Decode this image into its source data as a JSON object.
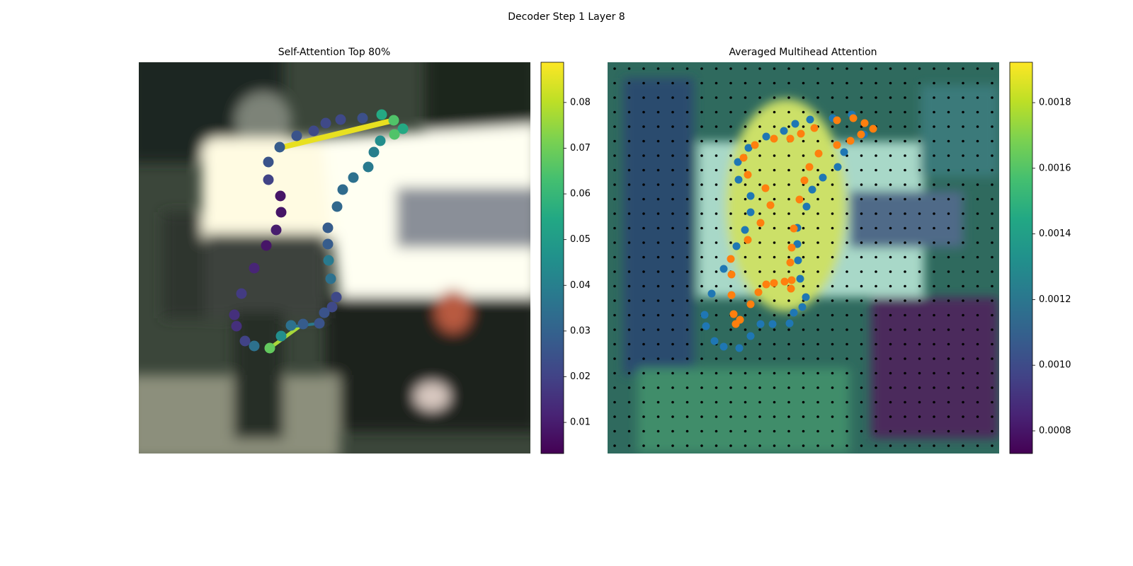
{
  "title": "Decoder Step 1 Layer 8",
  "chart_data": [
    {
      "type": "scatter",
      "title": "Self-Attention Top 80%",
      "colormap": "viridis",
      "xlim": [
        0,
        553
      ],
      "ylim": [
        553,
        0
      ],
      "x": [
        199,
        223,
        247,
        264,
        285,
        316,
        343,
        360,
        373,
        361,
        341,
        332,
        324,
        303,
        288,
        280,
        267,
        267,
        268,
        271,
        279,
        273,
        262,
        255,
        232,
        215,
        201,
        185,
        163,
        150,
        138,
        135,
        145,
        163,
        180,
        194,
        201,
        200,
        183,
        183
      ],
      "y": [
        120,
        104,
        97,
        86,
        81,
        79,
        74,
        82,
        94,
        102,
        111,
        127,
        148,
        163,
        180,
        204,
        234,
        257,
        280,
        306,
        332,
        346,
        354,
        369,
        370,
        372,
        387,
        404,
        401,
        394,
        373,
        357,
        327,
        291,
        259,
        237,
        212,
        189,
        166,
        141
      ],
      "values": [
        0.028,
        0.025,
        0.022,
        0.022,
        0.022,
        0.024,
        0.055,
        0.065,
        0.055,
        0.065,
        0.045,
        0.04,
        0.038,
        0.035,
        0.033,
        0.032,
        0.028,
        0.028,
        0.038,
        0.035,
        0.022,
        0.022,
        0.025,
        0.025,
        0.028,
        0.035,
        0.045,
        0.068,
        0.035,
        0.02,
        0.015,
        0.015,
        0.018,
        0.012,
        0.008,
        0.01,
        0.008,
        0.008,
        0.02,
        0.025
      ],
      "clim": [
        0.0032,
        0.0888
      ],
      "cticks": [
        0.01,
        0.02,
        0.03,
        0.04,
        0.05,
        0.06,
        0.07,
        0.08
      ]
    },
    {
      "type": "scatter",
      "title": "Averaged Multihead Attention",
      "colormap": "viridis",
      "xlim": [
        0,
        553
      ],
      "ylim": [
        553,
        0
      ],
      "series": [
        {
          "color": "#1f77b4",
          "x": [
            345,
            362,
            334,
            325,
            304,
            289,
            281,
            268,
            268,
            269,
            272,
            280,
            275,
            263,
            257,
            233,
            216,
            202,
            186,
            164,
            151,
            139,
            137,
            147,
            164,
            182,
            194,
            202,
            202,
            185,
            184,
            199,
            224,
            249,
            265,
            286,
            318
          ],
          "y": [
            74,
            102,
            127,
            148,
            163,
            180,
            204,
            234,
            257,
            280,
            306,
            332,
            346,
            354,
            369,
            370,
            370,
            387,
            404,
            402,
            394,
            373,
            357,
            327,
            292,
            260,
            237,
            212,
            189,
            166,
            141,
            121,
            105,
            97,
            87,
            81,
            79
          ]
        },
        {
          "color": "#ff7f0e",
          "x": [
            324,
            347,
            363,
            375,
            358,
            343,
            324,
            298,
            285,
            278,
            271,
            263,
            260,
            258,
            260,
            259,
            250,
            235,
            224,
            213,
            202,
            187,
            181,
            178,
            175,
            175,
            174,
            198,
            216,
            230,
            223,
            198,
            192,
            208,
            235,
            258,
            273,
            292
          ],
          "y": [
            82,
            79,
            86,
            94,
            102,
            111,
            117,
            129,
            148,
            167,
            194,
            235,
            262,
            283,
            308,
            320,
            310,
            312,
            314,
            325,
            342,
            364,
            370,
            356,
            329,
            300,
            278,
            251,
            227,
            202,
            178,
            159,
            135,
            117,
            108,
            108,
            101,
            93
          ]
        }
      ],
      "clim": [
        0.000731,
        0.001923
      ],
      "cticks": [
        0.0008,
        {
          "value": 0.001,
          "label": "0.0010"
        },
        0.0012,
        0.0014,
        0.0016,
        0.0018
      ]
    }
  ]
}
